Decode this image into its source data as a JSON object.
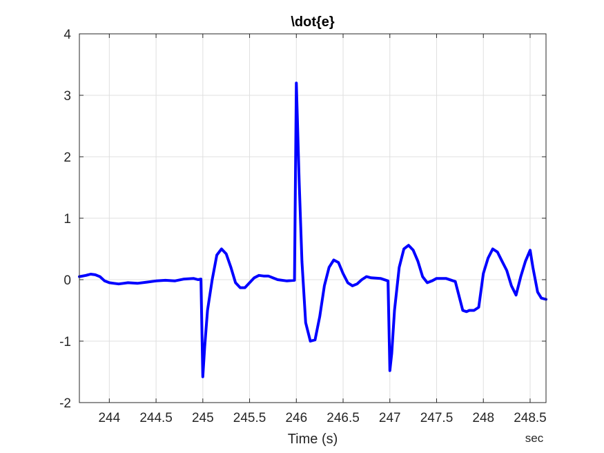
{
  "chart_data": {
    "type": "line",
    "title": "\\dot{e}",
    "xlabel": "Time (s)",
    "ylabel": "",
    "x_unit": "sec",
    "xlim": [
      243.68,
      248.67
    ],
    "ylim": [
      -2,
      4
    ],
    "x_ticks": [
      244,
      244.5,
      245,
      245.5,
      246,
      246.5,
      247,
      247.5,
      248,
      248.5
    ],
    "x_tick_labels": [
      "244",
      "244.5",
      "245",
      "245.5",
      "246",
      "246.5",
      "247",
      "247.5",
      "248",
      "248.5"
    ],
    "y_ticks": [
      -2,
      -1,
      0,
      1,
      2,
      3,
      4
    ],
    "y_tick_labels": [
      "-2",
      "-1",
      "0",
      "1",
      "2",
      "3",
      "4"
    ],
    "grid": true,
    "series": [
      {
        "color": "#0000ff",
        "x": [
          243.68,
          243.75,
          243.8,
          243.85,
          243.9,
          243.95,
          244.0,
          244.05,
          244.1,
          244.15,
          244.2,
          244.3,
          244.4,
          244.5,
          244.6,
          244.7,
          244.8,
          244.9,
          244.95,
          244.98,
          245.0,
          245.02,
          245.05,
          245.1,
          245.15,
          245.2,
          245.25,
          245.3,
          245.35,
          245.4,
          245.45,
          245.5,
          245.55,
          245.6,
          245.65,
          245.7,
          245.8,
          245.9,
          245.98,
          246.0,
          246.01,
          246.03,
          246.06,
          246.1,
          246.15,
          246.2,
          246.25,
          246.3,
          246.35,
          246.4,
          246.45,
          246.5,
          246.55,
          246.6,
          246.65,
          246.7,
          246.75,
          246.8,
          246.9,
          246.98,
          247.0,
          247.02,
          247.05,
          247.1,
          247.15,
          247.2,
          247.25,
          247.3,
          247.35,
          247.4,
          247.45,
          247.5,
          247.55,
          247.6,
          247.7,
          247.78,
          247.82,
          247.85,
          247.9,
          247.95,
          248.0,
          248.05,
          248.1,
          248.15,
          248.2,
          248.25,
          248.3,
          248.35,
          248.4,
          248.45,
          248.5,
          248.53,
          248.58,
          248.62,
          248.67
        ],
        "y": [
          0.05,
          0.07,
          0.09,
          0.08,
          0.05,
          -0.02,
          -0.05,
          -0.06,
          -0.07,
          -0.06,
          -0.05,
          -0.06,
          -0.04,
          -0.02,
          -0.01,
          -0.02,
          0.01,
          0.02,
          0.0,
          0.01,
          -1.58,
          -1.1,
          -0.5,
          0.0,
          0.4,
          0.5,
          0.42,
          0.2,
          -0.05,
          -0.13,
          -0.13,
          -0.05,
          0.03,
          0.07,
          0.06,
          0.06,
          0.0,
          -0.02,
          -0.01,
          3.2,
          2.7,
          1.6,
          0.3,
          -0.7,
          -1.0,
          -0.98,
          -0.6,
          -0.1,
          0.2,
          0.32,
          0.28,
          0.1,
          -0.05,
          -0.1,
          -0.07,
          0.0,
          0.05,
          0.03,
          0.02,
          -0.02,
          -1.48,
          -1.2,
          -0.5,
          0.2,
          0.5,
          0.56,
          0.48,
          0.3,
          0.05,
          -0.05,
          -0.02,
          0.02,
          0.02,
          0.02,
          -0.03,
          -0.5,
          -0.52,
          -0.5,
          -0.5,
          -0.45,
          0.1,
          0.35,
          0.5,
          0.45,
          0.3,
          0.15,
          -0.1,
          -0.25,
          0.05,
          0.3,
          0.48,
          0.2,
          -0.2,
          -0.3,
          -0.32
        ]
      }
    ]
  }
}
